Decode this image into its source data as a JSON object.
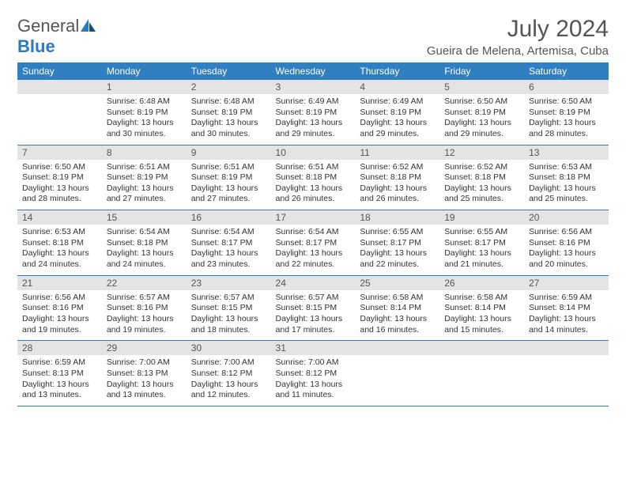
{
  "brand": {
    "text_general": "General",
    "text_blue": "Blue"
  },
  "title": "July 2024",
  "location": "Gueira de Melena, Artemisa, Cuba",
  "colors": {
    "header_bg": "#2f7fc1",
    "header_text": "#ffffff",
    "daynum_bg": "#e4e4e4",
    "rule": "#2f7fc1",
    "body_text": "#333333",
    "title_text": "#555555"
  },
  "fonts": {
    "title_pt": 30,
    "location_pt": 15,
    "dow_pt": 12,
    "daynum_pt": 12,
    "body_pt": 10.5
  },
  "days_of_week": [
    "Sunday",
    "Monday",
    "Tuesday",
    "Wednesday",
    "Thursday",
    "Friday",
    "Saturday"
  ],
  "first_weekday_index": 1,
  "days_in_month": 31,
  "days": {
    "1": {
      "sunrise": "6:48 AM",
      "sunset": "8:19 PM",
      "daylight": "13 hours and 30 minutes."
    },
    "2": {
      "sunrise": "6:48 AM",
      "sunset": "8:19 PM",
      "daylight": "13 hours and 30 minutes."
    },
    "3": {
      "sunrise": "6:49 AM",
      "sunset": "8:19 PM",
      "daylight": "13 hours and 29 minutes."
    },
    "4": {
      "sunrise": "6:49 AM",
      "sunset": "8:19 PM",
      "daylight": "13 hours and 29 minutes."
    },
    "5": {
      "sunrise": "6:50 AM",
      "sunset": "8:19 PM",
      "daylight": "13 hours and 29 minutes."
    },
    "6": {
      "sunrise": "6:50 AM",
      "sunset": "8:19 PM",
      "daylight": "13 hours and 28 minutes."
    },
    "7": {
      "sunrise": "6:50 AM",
      "sunset": "8:19 PM",
      "daylight": "13 hours and 28 minutes."
    },
    "8": {
      "sunrise": "6:51 AM",
      "sunset": "8:19 PM",
      "daylight": "13 hours and 27 minutes."
    },
    "9": {
      "sunrise": "6:51 AM",
      "sunset": "8:19 PM",
      "daylight": "13 hours and 27 minutes."
    },
    "10": {
      "sunrise": "6:51 AM",
      "sunset": "8:18 PM",
      "daylight": "13 hours and 26 minutes."
    },
    "11": {
      "sunrise": "6:52 AM",
      "sunset": "8:18 PM",
      "daylight": "13 hours and 26 minutes."
    },
    "12": {
      "sunrise": "6:52 AM",
      "sunset": "8:18 PM",
      "daylight": "13 hours and 25 minutes."
    },
    "13": {
      "sunrise": "6:53 AM",
      "sunset": "8:18 PM",
      "daylight": "13 hours and 25 minutes."
    },
    "14": {
      "sunrise": "6:53 AM",
      "sunset": "8:18 PM",
      "daylight": "13 hours and 24 minutes."
    },
    "15": {
      "sunrise": "6:54 AM",
      "sunset": "8:18 PM",
      "daylight": "13 hours and 24 minutes."
    },
    "16": {
      "sunrise": "6:54 AM",
      "sunset": "8:17 PM",
      "daylight": "13 hours and 23 minutes."
    },
    "17": {
      "sunrise": "6:54 AM",
      "sunset": "8:17 PM",
      "daylight": "13 hours and 22 minutes."
    },
    "18": {
      "sunrise": "6:55 AM",
      "sunset": "8:17 PM",
      "daylight": "13 hours and 22 minutes."
    },
    "19": {
      "sunrise": "6:55 AM",
      "sunset": "8:17 PM",
      "daylight": "13 hours and 21 minutes."
    },
    "20": {
      "sunrise": "6:56 AM",
      "sunset": "8:16 PM",
      "daylight": "13 hours and 20 minutes."
    },
    "21": {
      "sunrise": "6:56 AM",
      "sunset": "8:16 PM",
      "daylight": "13 hours and 19 minutes."
    },
    "22": {
      "sunrise": "6:57 AM",
      "sunset": "8:16 PM",
      "daylight": "13 hours and 19 minutes."
    },
    "23": {
      "sunrise": "6:57 AM",
      "sunset": "8:15 PM",
      "daylight": "13 hours and 18 minutes."
    },
    "24": {
      "sunrise": "6:57 AM",
      "sunset": "8:15 PM",
      "daylight": "13 hours and 17 minutes."
    },
    "25": {
      "sunrise": "6:58 AM",
      "sunset": "8:14 PM",
      "daylight": "13 hours and 16 minutes."
    },
    "26": {
      "sunrise": "6:58 AM",
      "sunset": "8:14 PM",
      "daylight": "13 hours and 15 minutes."
    },
    "27": {
      "sunrise": "6:59 AM",
      "sunset": "8:14 PM",
      "daylight": "13 hours and 14 minutes."
    },
    "28": {
      "sunrise": "6:59 AM",
      "sunset": "8:13 PM",
      "daylight": "13 hours and 13 minutes."
    },
    "29": {
      "sunrise": "7:00 AM",
      "sunset": "8:13 PM",
      "daylight": "13 hours and 13 minutes."
    },
    "30": {
      "sunrise": "7:00 AM",
      "sunset": "8:12 PM",
      "daylight": "13 hours and 12 minutes."
    },
    "31": {
      "sunrise": "7:00 AM",
      "sunset": "8:12 PM",
      "daylight": "13 hours and 11 minutes."
    }
  },
  "labels": {
    "sunrise": "Sunrise:",
    "sunset": "Sunset:",
    "daylight": "Daylight:"
  }
}
